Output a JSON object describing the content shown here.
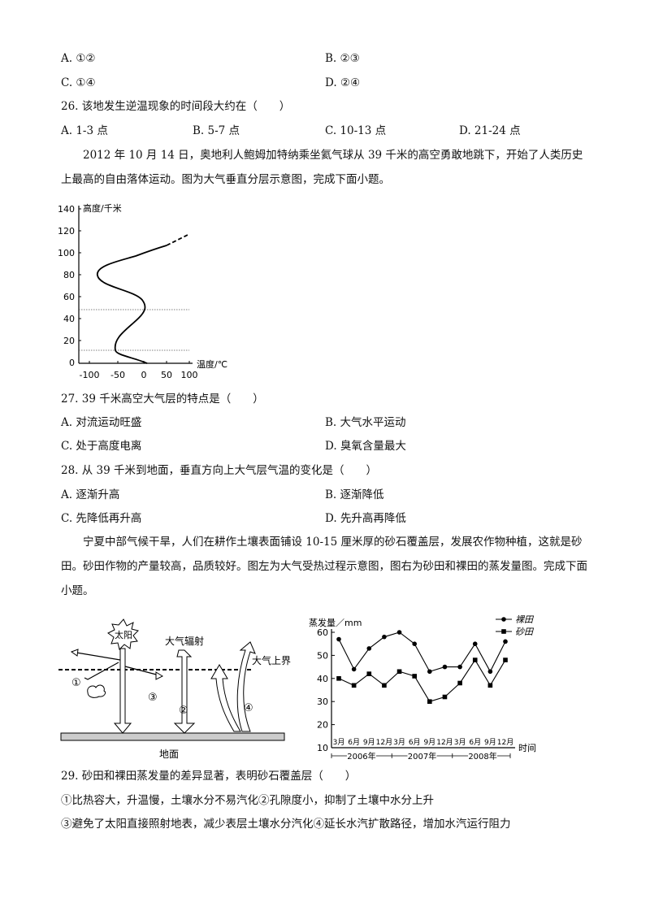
{
  "q25": {
    "options": {
      "A": "A. ①②",
      "B": "B. ②③",
      "C": "C. ①④",
      "D": "D. ②④"
    }
  },
  "q26": {
    "stem": "26. 该地发生逆温现象的时间段大约在（　　）",
    "options": {
      "A": "A. 1-3 点",
      "B": "B. 5-7 点",
      "C": "C. 10-13 点",
      "D": "D. 21-24 点"
    }
  },
  "passage1": "　　2012 年 10 月 14 日，奥地利人鲍姆加特纳乘坐氦气球从 39 千米的高空勇敢地跳下，开始了人类历史上最高的自由落体运动。图为大气垂直分层示意图，完成下面小题。",
  "figure1": {
    "ylabel": "高度/千米",
    "xlabel": "温度/℃",
    "yticks": [
      "140",
      "120",
      "100",
      "80",
      "60",
      "40",
      "20",
      "0"
    ],
    "xticks": [
      "-100",
      "-50",
      "0",
      "50",
      "100"
    ]
  },
  "q27": {
    "stem": "27. 39 千米高空大气层的特点是（　　）",
    "options": {
      "A": "A. 对流运动旺盛",
      "B": "B. 大气水平运动",
      "C": "C. 处于高度电离",
      "D": "D. 臭氧含量最大"
    }
  },
  "q28": {
    "stem": "28. 从 39 千米到地面，垂直方向上大气层气温的变化是（　　）",
    "options": {
      "A": "A. 逐渐升高",
      "B": "B. 逐渐降低",
      "C": "C. 先降低再升高",
      "D": "D. 先升高再降低"
    }
  },
  "passage2": "　　宁夏中部气候干旱，人们在耕作土壤表面铺设 10-15 厘米厚的砂石覆盖层，发展农作物种植，这就是砂田。砂田作物的产量较高，品质较好。图左为大气受热过程示意图，图右为砂田和裸田的蒸发量图。完成下面小题。",
  "figure2": {
    "sun_label": "太阳",
    "radiation_label": "大气辐射",
    "upper_boundary_label": "大气上界",
    "ground_label": "地面",
    "markers": [
      "①",
      "②",
      "③",
      "④"
    ]
  },
  "chart_data": {
    "type": "line",
    "ylabel": "蒸发量／mm",
    "xlabel": "时间",
    "ylim": [
      10,
      60
    ],
    "yticks": [
      "60",
      "50",
      "40",
      "30",
      "20",
      "10"
    ],
    "categories": [
      "3月",
      "6月",
      "9月",
      "12月",
      "3月",
      "6月",
      "9月",
      "12月",
      "3月",
      "6月",
      "9月",
      "12月"
    ],
    "years": [
      "2006年",
      "2007年",
      "2008年"
    ],
    "series": [
      {
        "name": "裸田",
        "marker": "circle",
        "values": [
          57,
          44,
          53,
          58,
          60,
          55,
          43,
          45,
          45,
          55,
          43,
          56
        ]
      },
      {
        "name": "砂田",
        "marker": "square",
        "values": [
          40,
          37,
          42,
          37,
          43,
          41,
          30,
          32,
          38,
          48,
          37,
          48
        ]
      }
    ]
  },
  "q29": {
    "stem": "29. 砂田和裸田蒸发量的差异显著，表明砂石覆盖层（　　）",
    "line1": "①比热容大，升温慢，土壤水分不易汽化②孔隙度小，抑制了土壤中水分上升",
    "line2": "③避免了太阳直接照射地表，减少表层土壤水分汽化④延长水汽扩散路径，增加水汽运行阻力"
  }
}
